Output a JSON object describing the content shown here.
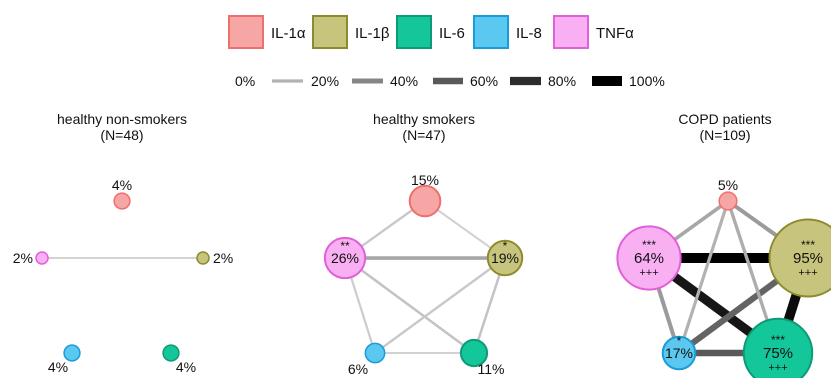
{
  "legend": {
    "cytokines": [
      {
        "label": "IL-1α",
        "fill": "#f7a6a6",
        "stroke": "#ef6f6f"
      },
      {
        "label": "IL-1β",
        "fill": "#c7c47d",
        "stroke": "#8e8b2e"
      },
      {
        "label": "IL-6",
        "fill": "#14c79a",
        "stroke": "#0f9a76"
      },
      {
        "label": "IL-8",
        "fill": "#5bc9ef",
        "stroke": "#1b9bd8"
      },
      {
        "label": "TNFα",
        "fill": "#f8b0f2",
        "stroke": "#e060d8"
      }
    ],
    "edge_scale": [
      {
        "label": "0%",
        "level": 0
      },
      {
        "label": "20%",
        "level": 20
      },
      {
        "label": "40%",
        "level": 40
      },
      {
        "label": "60%",
        "level": 60
      },
      {
        "label": "80%",
        "level": 80
      },
      {
        "label": "100%",
        "level": 100
      }
    ]
  },
  "panels": [
    {
      "title": "healthy non-smokers",
      "subtitle": "(N=48)",
      "nodes": {
        "IL-1α": {
          "percent": "4%",
          "value": 4,
          "sig_top": "",
          "sig_bottom": ""
        },
        "IL-1β": {
          "percent": "2%",
          "value": 2,
          "sig_top": "",
          "sig_bottom": ""
        },
        "IL-6": {
          "percent": "4%",
          "value": 4,
          "sig_top": "",
          "sig_bottom": ""
        },
        "IL-8": {
          "percent": "4%",
          "value": 4,
          "sig_top": "",
          "sig_bottom": ""
        },
        "TNFα": {
          "percent": "2%",
          "value": 2,
          "sig_top": "",
          "sig_bottom": ""
        }
      },
      "edges": [
        {
          "from": "TNFα",
          "to": "IL-1β",
          "level": 5
        }
      ]
    },
    {
      "title": "healthy smokers",
      "subtitle": "(N=47)",
      "nodes": {
        "IL-1α": {
          "percent": "15%",
          "value": 15,
          "sig_top": "",
          "sig_bottom": ""
        },
        "IL-1β": {
          "percent": "19%",
          "value": 19,
          "sig_top": "*",
          "sig_bottom": ""
        },
        "IL-6": {
          "percent": "11%",
          "value": 11,
          "sig_top": "",
          "sig_bottom": ""
        },
        "IL-8": {
          "percent": "6%",
          "value": 6,
          "sig_top": "",
          "sig_bottom": ""
        },
        "TNFα": {
          "percent": "26%",
          "value": 26,
          "sig_top": "**",
          "sig_bottom": ""
        }
      },
      "edges": [
        {
          "from": "TNFα",
          "to": "IL-1β",
          "level": 25
        },
        {
          "from": "TNFα",
          "to": "IL-1α",
          "level": 10
        },
        {
          "from": "TNFα",
          "to": "IL-6",
          "level": 12
        },
        {
          "from": "TNFα",
          "to": "IL-8",
          "level": 8
        },
        {
          "from": "IL-1β",
          "to": "IL-6",
          "level": 12
        },
        {
          "from": "IL-1β",
          "to": "IL-8",
          "level": 10
        },
        {
          "from": "IL-1β",
          "to": "IL-1α",
          "level": 6
        },
        {
          "from": "IL-8",
          "to": "IL-6",
          "level": 6
        }
      ]
    },
    {
      "title": "COPD patients",
      "subtitle": "(N=109)",
      "nodes": {
        "IL-1α": {
          "percent": "5%",
          "value": 5,
          "sig_top": "",
          "sig_bottom": ""
        },
        "IL-1β": {
          "percent": "95%",
          "value": 95,
          "sig_top": "***",
          "sig_bottom": "+++"
        },
        "IL-6": {
          "percent": "75%",
          "value": 75,
          "sig_top": "***",
          "sig_bottom": "+++"
        },
        "IL-8": {
          "percent": "17%",
          "value": 17,
          "sig_top": "*",
          "sig_bottom": ""
        },
        "TNFα": {
          "percent": "64%",
          "value": 64,
          "sig_top": "***",
          "sig_bottom": "+++"
        }
      },
      "edges": [
        {
          "from": "TNFα",
          "to": "IL-1β",
          "level": 100
        },
        {
          "from": "TNFα",
          "to": "IL-6",
          "level": 90
        },
        {
          "from": "IL-1β",
          "to": "IL-6",
          "level": 95
        },
        {
          "from": "IL-1β",
          "to": "IL-8",
          "level": 55
        },
        {
          "from": "TNFα",
          "to": "IL-8",
          "level": 30
        },
        {
          "from": "IL-8",
          "to": "IL-6",
          "level": 60
        },
        {
          "from": "TNFα",
          "to": "IL-1α",
          "level": 25
        },
        {
          "from": "IL-1β",
          "to": "IL-1α",
          "level": 30
        },
        {
          "from": "IL-1α",
          "to": "IL-6",
          "level": 22
        },
        {
          "from": "IL-1α",
          "to": "IL-8",
          "level": 20
        }
      ]
    }
  ]
}
